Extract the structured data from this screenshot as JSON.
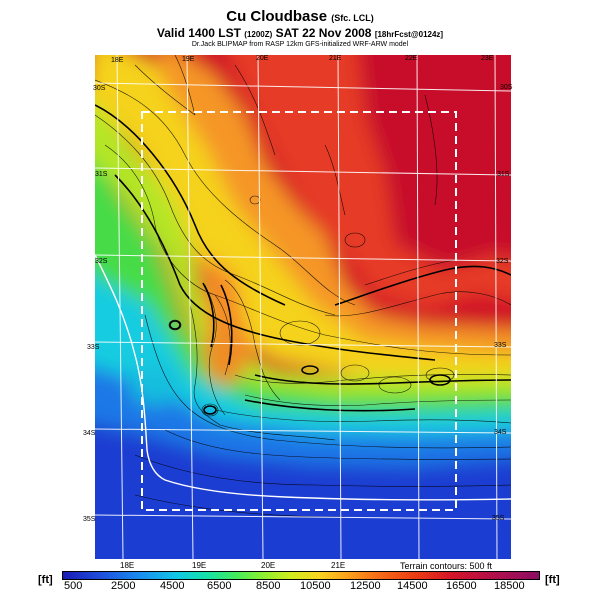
{
  "header": {
    "title": "Cu Cloudbase",
    "title_suffix": "(Sfc. LCL)",
    "valid_main": "Valid 1400 LST",
    "valid_utc": "(1200Z)",
    "valid_date": "SAT 22 Nov 2008",
    "valid_run": "[18hrFcst@0124z]",
    "credit": "Dr.Jack BLIPMAP from RASP 12km GFS-initialized WRF-ARW model"
  },
  "map": {
    "lon_labels_top": [
      "18E",
      "19E",
      "20E",
      "21E",
      "22E",
      "23E"
    ],
    "lon_labels_bottom": [
      "18E",
      "19E",
      "20E",
      "21E"
    ],
    "lat_labels": [
      "30S",
      "31S",
      "32S",
      "33S",
      "34S",
      "35S"
    ],
    "terrain_note": "Terrain contours: 500 ft"
  },
  "colorbar": {
    "unit": "[ft]",
    "labels": [
      "500",
      "2500",
      "4500",
      "6500",
      "8500",
      "10500",
      "12500",
      "14500",
      "16500",
      "18500"
    ]
  },
  "colors": {
    "deep_blue": "#1a1ab4",
    "blue": "#1e64e6",
    "cyan": "#14d2e6",
    "green": "#3cdc50",
    "yellow": "#f5dc1e",
    "orange": "#f59628",
    "red": "#e63228",
    "crimson": "#c8102c"
  }
}
